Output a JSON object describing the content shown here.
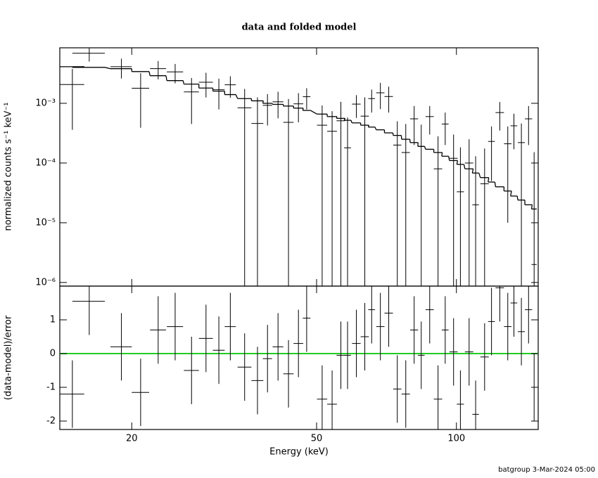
{
  "chart_data": [
    {
      "type": "errorbar",
      "title": "data and folded model",
      "ylabel": "normalized counts s⁻¹ keV⁻¹",
      "log_x": true,
      "log_y": true,
      "xlim": [
        14,
        150
      ],
      "ylim": [
        8.7e-07,
        0.0085
      ],
      "yticks": [
        {
          "value": 1e-06,
          "label": "10⁻⁶"
        },
        {
          "value": 1e-05,
          "label": "10⁻⁵"
        },
        {
          "value": 0.0001,
          "label": "10⁻⁴"
        },
        {
          "value": 0.001,
          "label": "10⁻³"
        }
      ],
      "x": [
        14.9,
        16.2,
        19.0,
        20.9,
        22.8,
        24.8,
        26.9,
        28.9,
        30.8,
        32.6,
        35.0,
        37.3,
        39.2,
        41.3,
        43.5,
        45.7,
        47.6,
        51.4,
        54.0,
        56.4,
        58.3,
        60.9,
        63.5,
        65.7,
        68.6,
        71.5,
        74.6,
        77.8,
        81.1,
        84.0,
        87.6,
        91.3,
        94.6,
        98.6,
        102,
        106.5,
        110,
        115,
        119,
        124,
        129,
        133,
        138,
        143,
        147
      ],
      "xerr": [
        0.9,
        1.3,
        1.0,
        0.9,
        0.9,
        1.0,
        1.0,
        1.0,
        0.9,
        0.9,
        1.2,
        1.1,
        0.9,
        1.1,
        1.1,
        1.1,
        0.9,
        1.3,
        1.3,
        1.2,
        1.0,
        1.3,
        1.3,
        1.1,
        1.4,
        1.5,
        1.5,
        1.6,
        1.6,
        1.4,
        1.8,
        1.9,
        1.6,
        2.0,
        1.8,
        2.2,
        1.8,
        2.4,
        2.0,
        2.6,
        2.4,
        2.2,
        2.4,
        2.6,
        1.9
      ],
      "series": [
        {
          "style": "crosses",
          "color": "#000000",
          "values": [
            0.00206,
            0.0069,
            0.0041,
            0.00179,
            0.00381,
            0.00336,
            0.00155,
            0.00225,
            0.00169,
            0.00204,
            0.00084,
            0.00046,
            0.000925,
            0.00106,
            0.00048,
            0.00098,
            0.00129,
            0.00043,
            0.00034,
            0.00051,
            0.00018,
            0.00097,
            0.00061,
            0.0012,
            0.0015,
            0.0013,
            0.0002,
            0.00015,
            0.00055,
            0.00019,
            0.0006,
            8e-05,
            0.00045,
            0.00012,
            3.3e-05,
            0.0001,
            2e-05,
            4.5e-05,
            0.00023,
            0.0007,
            0.00021,
            0.00042,
            0.00022,
            0.00055,
            2e-06
          ],
          "errors": [
            0.0017,
            0.0019,
            0.0015,
            0.0014,
            0.0013,
            0.0012,
            0.0011,
            0.001,
            0.0009,
            0.0008,
            0.0009,
            0.0008,
            0.0005,
            0.0005,
            0.0007,
            0.0005,
            0.0005,
            0.00049,
            0.0004,
            0.00055,
            0.0004,
            0.0004,
            0.00065,
            0.0005,
            0.0007,
            0.0006,
            0.0003,
            0.0003,
            0.00035,
            0.00025,
            0.0003,
            0.0002,
            0.00025,
            0.00018,
            0.00015,
            0.00015,
            0.00011,
            0.00013,
            0.00018,
            0.00035,
            0.0002,
            0.00025,
            0.00024,
            0.00035,
            0.00015
          ]
        },
        {
          "style": "steps",
          "color": "#000000",
          "values": [
            0.0041,
            0.004,
            0.0038,
            0.0034,
            0.0029,
            0.0024,
            0.0021,
            0.0018,
            0.0016,
            0.0014,
            0.0012,
            0.0011,
            0.001,
            0.00096,
            0.0009,
            0.00083,
            0.00076,
            0.00066,
            0.0006,
            0.00056,
            0.00052,
            0.00047,
            0.00043,
            0.0004,
            0.00036,
            0.00032,
            0.00029,
            0.00025,
            0.00022,
            0.00019,
            0.00017,
            0.00015,
            0.00013,
            0.00011,
            9.5e-05,
            8e-05,
            6.8e-05,
            5.7e-05,
            4.8e-05,
            4e-05,
            3.4e-05,
            2.8e-05,
            2.4e-05,
            2e-05,
            1.7e-05
          ]
        }
      ]
    },
    {
      "type": "errorbar",
      "xlabel": "Energy (keV)",
      "ylabel": "(data-model)/error",
      "log_x": true,
      "log_y": false,
      "xlim": [
        14,
        150
      ],
      "ylim": [
        -2.25,
        2
      ],
      "xticks": [
        20,
        50,
        100
      ],
      "yticks": [
        -2,
        -1,
        0,
        1
      ],
      "hline": {
        "value": 0,
        "color": "#22cc22"
      },
      "series": [
        {
          "style": "crosses",
          "color": "#000000",
          "values": [
            -1.2,
            1.55,
            0.2,
            -1.15,
            0.7,
            0.8,
            -0.5,
            0.45,
            0.1,
            0.8,
            -0.4,
            -0.8,
            -0.15,
            0.2,
            -0.6,
            0.3,
            1.05,
            -1.35,
            -1.5,
            -0.05,
            -0.05,
            0.3,
            0.5,
            1.3,
            0.8,
            1.2,
            -1.05,
            -1.2,
            0.7,
            -0.05,
            1.3,
            -1.35,
            0.7,
            0.05,
            -1.5,
            0.05,
            -1.8,
            -0.1,
            0.95,
            1.95,
            0.8,
            1.5,
            0.65,
            1.3,
            -1.0
          ],
          "errors": [
            1,
            1,
            1,
            1,
            1,
            1,
            1,
            1,
            1,
            1,
            1,
            1,
            1,
            1,
            1,
            1,
            1,
            1,
            1,
            1,
            1,
            1,
            1,
            1,
            1,
            1,
            1,
            1,
            1,
            1,
            1,
            1,
            1,
            1,
            1,
            1,
            1,
            1,
            1,
            1,
            1,
            1,
            1,
            1,
            1
          ]
        }
      ]
    }
  ],
  "footer": "batgroup  3-Mar-2024 05:00"
}
